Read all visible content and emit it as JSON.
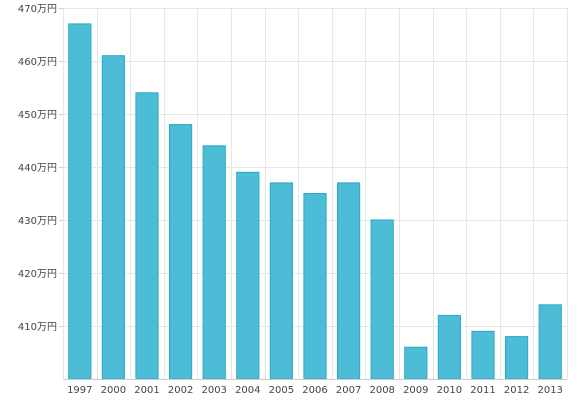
{
  "chart_data": {
    "type": "bar",
    "title": "",
    "xlabel": "",
    "ylabel": "",
    "categories": [
      "1997",
      "2000",
      "2001",
      "2002",
      "2003",
      "2004",
      "2005",
      "2006",
      "2007",
      "2008",
      "2009",
      "2010",
      "2011",
      "2012",
      "2013"
    ],
    "values": [
      467,
      461,
      454,
      448,
      444,
      439,
      437,
      435,
      437,
      430,
      406,
      412,
      409,
      408,
      414
    ],
    "ylim": [
      400,
      470
    ],
    "yticks": [
      410,
      420,
      430,
      440,
      450,
      460,
      470
    ],
    "ytick_labels": [
      "410万円",
      "420万円",
      "430万円",
      "440万円",
      "450万円",
      "460万円",
      "470万円"
    ],
    "grid": true,
    "colors": {
      "bar_fill": "#4dbcd6",
      "bar_stroke": "#2aa8c4"
    }
  }
}
